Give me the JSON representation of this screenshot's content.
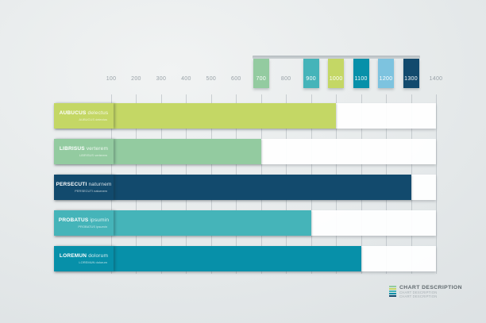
{
  "chart_data": {
    "type": "bar",
    "orientation": "horizontal",
    "title": "",
    "xlabel": "",
    "ylabel": "",
    "grid": true,
    "x_start": 100,
    "xlim": [
      100,
      1400
    ],
    "x_ticks": [
      100,
      200,
      300,
      400,
      500,
      600,
      700,
      800,
      900,
      1000,
      1100,
      1200,
      1300,
      1400
    ],
    "categories": [
      "AUBUCUS delectus",
      "LIBRISUS verterem",
      "PERSECUTI naturnem",
      "PROBATUS ipsumin",
      "LOREMUN dolorum"
    ],
    "values": [
      1000,
      700,
      1300,
      900,
      1100
    ],
    "bars": [
      {
        "label_bold": "AUBUCUS",
        "label_rest": "delectus",
        "sublabel": "AUBUCUS delectus",
        "value": 1000,
        "color": "#c4d765"
      },
      {
        "label_bold": "LIBRISUS",
        "label_rest": "verterem",
        "sublabel": "LIBRISUS verterem",
        "value": 700,
        "color": "#93cba0"
      },
      {
        "label_bold": "PERSECUTI",
        "label_rest": "naturnem",
        "sublabel": "PERSECUTI naturnem",
        "value": 1300,
        "color": "#124a6d"
      },
      {
        "label_bold": "PROBATUS",
        "label_rest": "ipsumin",
        "sublabel": "PROBATUS ipsumin",
        "value": 900,
        "color": "#45b4b9"
      },
      {
        "label_bold": "LOREMUN",
        "label_rest": "dolorum",
        "sublabel": "LOREMUN dolorum",
        "value": 1100,
        "color": "#0790a9"
      }
    ],
    "axis_highlight_blocks": [
      {
        "value": 700,
        "color": "#93cba0"
      },
      {
        "value": 900,
        "color": "#45b4b9"
      },
      {
        "value": 1000,
        "color": "#c4d765"
      },
      {
        "value": 1100,
        "color": "#0790a9"
      },
      {
        "value": 1200,
        "color": "#7dc3df"
      },
      {
        "value": 1300,
        "color": "#124a6d"
      }
    ]
  },
  "footer": {
    "title": "CHART DESCRIPTION",
    "subtitle_lines": [
      "CHART DESCRIPTION",
      "CHART DESCRIPTION"
    ],
    "stripe_colors": [
      "#93cba0",
      "#c4d765",
      "#45b4b9",
      "#0790a9",
      "#124a6d"
    ]
  }
}
